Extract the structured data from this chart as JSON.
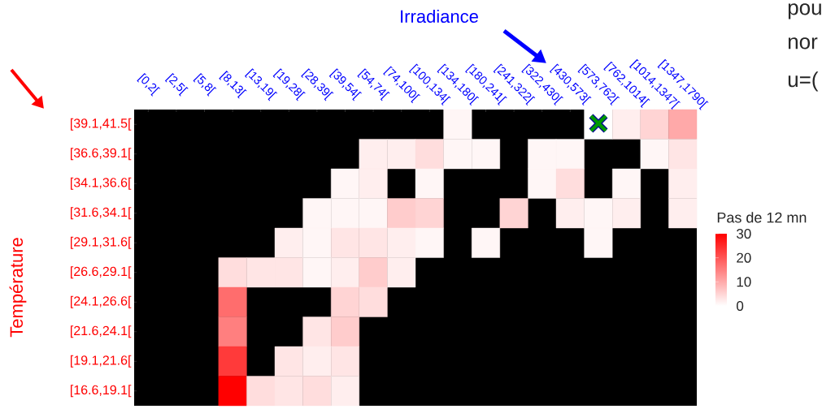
{
  "chart_data": {
    "type": "heatmap",
    "xlabel": "Irradiance",
    "ylabel": "Température",
    "clabel": "Pas de 12 mn",
    "categories": [
      "[0,2[",
      "[2,5[",
      "[5,8[",
      "[8,13[",
      "[13,19[",
      "[19,28[",
      "[28,39[",
      "[39,54[",
      "[54,74[",
      "[74,100[",
      "[100,134[",
      "[134,180[",
      "[180,241[",
      "[241,322[",
      "[322,430[",
      "[430,573[",
      "[573,762[",
      "[762,1014[",
      "[1014,1347[",
      "[1347,1790["
    ],
    "y_categories": [
      "[39.1,41.5[",
      "[36.6,39.1[",
      "[34.1,36.6[",
      "[31.6,34.1[",
      "[29.1,31.6[",
      "[26.6,29.1[",
      "[24.1,26.6[",
      "[21.6,24.1[",
      "[19.1,21.6[",
      "[16.6,19.1["
    ],
    "cells": [
      [
        null,
        null,
        null,
        null,
        null,
        null,
        null,
        null,
        null,
        null,
        null,
        1,
        null,
        null,
        null,
        null,
        0,
        2,
        5,
        10
      ],
      [
        null,
        null,
        null,
        null,
        null,
        null,
        null,
        null,
        2,
        2,
        4,
        1,
        1,
        null,
        1,
        1,
        null,
        null,
        1,
        3
      ],
      [
        null,
        null,
        null,
        null,
        null,
        null,
        null,
        1,
        2,
        null,
        1,
        null,
        null,
        null,
        1,
        4,
        null,
        1,
        null,
        2
      ],
      [
        null,
        null,
        null,
        null,
        null,
        null,
        1,
        1,
        1,
        6,
        5,
        null,
        null,
        5,
        null,
        2,
        1,
        2,
        null,
        2
      ],
      [
        null,
        null,
        null,
        null,
        null,
        2,
        1,
        3,
        3,
        2,
        1,
        null,
        1,
        null,
        null,
        null,
        1,
        null,
        null,
        null
      ],
      [
        null,
        null,
        null,
        4,
        3,
        3,
        1,
        2,
        6,
        2,
        null,
        null,
        null,
        null,
        null,
        null,
        null,
        null,
        null,
        null
      ],
      [
        null,
        null,
        null,
        17,
        null,
        null,
        null,
        5,
        4,
        null,
        null,
        null,
        null,
        null,
        null,
        null,
        null,
        null,
        null,
        null
      ],
      [
        null,
        null,
        null,
        15,
        null,
        null,
        3,
        6,
        null,
        null,
        null,
        null,
        null,
        null,
        null,
        null,
        null,
        null,
        null,
        null
      ],
      [
        null,
        null,
        null,
        23,
        null,
        3,
        2,
        3,
        null,
        null,
        null,
        null,
        null,
        null,
        null,
        null,
        null,
        null,
        null,
        null
      ],
      [
        null,
        null,
        null,
        30,
        4,
        3,
        4,
        2,
        null,
        null,
        null,
        null,
        null,
        null,
        null,
        null,
        null,
        null,
        null,
        null
      ]
    ],
    "clim": [
      0,
      30
    ],
    "cticks": [
      0,
      10,
      20,
      30
    ],
    "annotations": [
      "pou",
      "nor",
      "u=("
    ]
  }
}
